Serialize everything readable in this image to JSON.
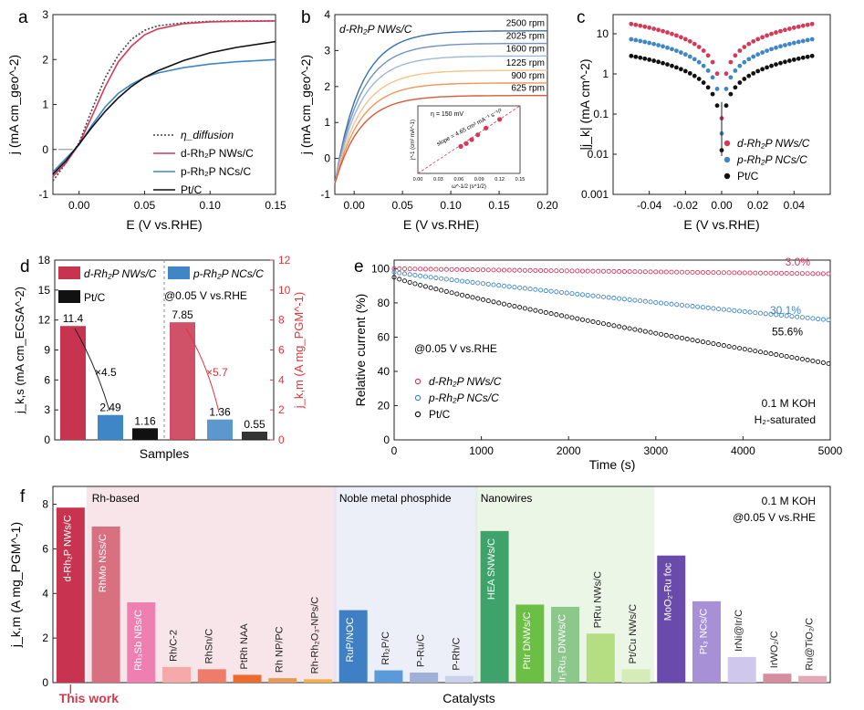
{
  "chart_data": [
    {
      "panel": "a",
      "type": "line",
      "xlabel": "E (V vs.RHE)",
      "ylabel": "j (mA cm_geo^-2)",
      "xlim": [
        -0.02,
        0.15
      ],
      "ylim": [
        -1,
        3
      ],
      "xticks": [
        "0.00",
        "0.05",
        "0.10",
        "0.15"
      ],
      "yticks": [
        "-1",
        "0",
        "1",
        "2",
        "3"
      ],
      "legend_position": "bottom-right",
      "series": [
        {
          "name": "η_diffusion",
          "style": "dotted",
          "color": "#444444",
          "x": [
            -0.02,
            -0.01,
            0,
            0.01,
            0.02,
            0.03,
            0.04,
            0.05,
            0.06,
            0.08,
            0.1,
            0.12,
            0.15
          ],
          "y": [
            -0.7,
            -0.3,
            0.15,
            0.9,
            1.6,
            2.1,
            2.45,
            2.65,
            2.75,
            2.82,
            2.85,
            2.86,
            2.86
          ]
        },
        {
          "name": "d-Rh₂P NWs/C",
          "style": "solid",
          "color": "#d4395a",
          "x": [
            -0.02,
            -0.01,
            0,
            0.01,
            0.02,
            0.03,
            0.04,
            0.05,
            0.06,
            0.08,
            0.1,
            0.12,
            0.15
          ],
          "y": [
            -0.6,
            -0.3,
            0.12,
            0.75,
            1.4,
            1.95,
            2.3,
            2.55,
            2.68,
            2.8,
            2.84,
            2.85,
            2.86
          ]
        },
        {
          "name": "p-Rh₂P NCs/C",
          "style": "solid",
          "color": "#3f86c6",
          "x": [
            -0.02,
            -0.01,
            0,
            0.01,
            0.02,
            0.03,
            0.04,
            0.05,
            0.06,
            0.08,
            0.1,
            0.12,
            0.15
          ],
          "y": [
            -0.5,
            -0.2,
            0.1,
            0.55,
            0.95,
            1.25,
            1.45,
            1.6,
            1.7,
            1.82,
            1.9,
            1.95,
            2.0
          ]
        },
        {
          "name": "Pt/C",
          "style": "solid",
          "color": "#111111",
          "x": [
            -0.02,
            -0.01,
            0,
            0.01,
            0.02,
            0.03,
            0.04,
            0.05,
            0.06,
            0.08,
            0.1,
            0.12,
            0.15
          ],
          "y": [
            -0.55,
            -0.25,
            0.12,
            0.5,
            0.85,
            1.15,
            1.4,
            1.6,
            1.75,
            1.98,
            2.15,
            2.27,
            2.4
          ]
        }
      ]
    },
    {
      "panel": "b",
      "type": "line",
      "title": "d-Rh₂P NWs/C",
      "xlabel": "E (V vs.RHE)",
      "ylabel": "j (mA cm_geo^-2)",
      "xlim": [
        -0.02,
        0.2
      ],
      "ylim": [
        -1,
        4
      ],
      "xticks": [
        "0.00",
        "0.05",
        "0.10",
        "0.15",
        "0.20"
      ],
      "yticks": [
        "-1",
        "0",
        "1",
        "2",
        "3",
        "4"
      ],
      "series": [
        {
          "name": "2500 rpm",
          "color": "#3b6ea8",
          "plateau": 3.55
        },
        {
          "name": "2025 rpm",
          "color": "#6f94c4",
          "plateau": 3.2
        },
        {
          "name": "1600 rpm",
          "color": "#9fb8d8",
          "plateau": 2.85
        },
        {
          "name": "1225 rpm",
          "color": "#f3c48c",
          "plateau": 2.45
        },
        {
          "name": "900 rpm",
          "color": "#f0965a",
          "plateau": 2.1
        },
        {
          "name": "625 rpm",
          "color": "#d85b3a",
          "plateau": 1.75
        }
      ],
      "inset": {
        "label": "η = 150 mV",
        "annotation": "slope = 4.65 cm² mA⁻¹ s⁻¹/²",
        "xlim": [
          0,
          0.15
        ],
        "xticks": [
          "0.00",
          "0.03",
          "0.06",
          "0.09",
          "0.12",
          "0.15"
        ],
        "xlabel": "ω^-1/2 (s^1/2)",
        "ylabel": "j^-1 (cm² mA^-1)",
        "x": [
          0.063,
          0.071,
          0.079,
          0.088,
          0.1,
          0.12
        ],
        "y": [
          0.28,
          0.31,
          0.35,
          0.4,
          0.47,
          0.56
        ]
      }
    },
    {
      "panel": "c",
      "type": "scatter",
      "xlabel": "E (V vs.RHE)",
      "ylabel": "|j_k| (mA cm^-2)",
      "xlim": [
        -0.06,
        0.06
      ],
      "ylim_log": [
        0.001,
        30
      ],
      "xticks": [
        "-0.04",
        "-0.02",
        "0.00",
        "0.02",
        "0.04"
      ],
      "yticks": [
        "0.001",
        "0.01",
        "0.1",
        "1",
        "10"
      ],
      "legend_position": "bottom-right",
      "series": [
        {
          "name": "d-Rh₂P NWs/C",
          "color": "#d4395a",
          "a": 17.5
        },
        {
          "name": "p-Rh₂P NCs/C",
          "color": "#3f86c6",
          "a": 7.3
        },
        {
          "name": "Pt/C",
          "color": "#111111",
          "a": 2.8
        }
      ]
    },
    {
      "panel": "d",
      "type": "bar",
      "xlabel": "Samples",
      "ylabel_left": "j_k,s (mA cm_ECSA^-2)",
      "ylabel_right": "j_k,m (A mg_PGM^-1)",
      "ylim_left": [
        0,
        18
      ],
      "ylim_right": [
        0,
        12
      ],
      "yticks_left": [
        "0",
        "3",
        "6",
        "9",
        "12",
        "15",
        "18"
      ],
      "yticks_right": [
        "0",
        "2",
        "4",
        "6",
        "8",
        "10",
        "12"
      ],
      "annotation": "@0.05 V vs.RHE",
      "ratio_left": "×4.5",
      "ratio_right": "×5.7",
      "legend": [
        "d-Rh₂P NWs/C",
        "p-Rh₂P NCs/C",
        "Pt/C"
      ],
      "specific": [
        {
          "name": "d-Rh₂P NWs/C",
          "value": 11.4,
          "label": "11.4",
          "color": "#c8344f"
        },
        {
          "name": "p-Rh₂P NCs/C",
          "value": 2.49,
          "label": "2.49",
          "color": "#3f86c6"
        },
        {
          "name": "Pt/C",
          "value": 1.16,
          "label": "1.16",
          "color": "#111111"
        }
      ],
      "mass": [
        {
          "name": "d-Rh₂P NWs/C",
          "value": 7.85,
          "label": "7.85",
          "color": "#c8344f"
        },
        {
          "name": "p-Rh₂P NCs/C",
          "value": 1.36,
          "label": "1.36",
          "color": "#3f86c6"
        },
        {
          "name": "Pt/C",
          "value": 0.55,
          "label": "0.55",
          "color": "#111111"
        }
      ]
    },
    {
      "panel": "e",
      "type": "scatter",
      "xlabel": "Time (s)",
      "ylabel": "Relative current (%)",
      "xlim": [
        0,
        5000
      ],
      "ylim": [
        0,
        105
      ],
      "xticks": [
        "0",
        "1000",
        "2000",
        "3000",
        "4000",
        "5000"
      ],
      "yticks": [
        "0",
        "20",
        "40",
        "60",
        "80",
        "100"
      ],
      "annotations": [
        "@0.05 V vs.RHE",
        "0.1 M KOH",
        "H₂-saturated"
      ],
      "series": [
        {
          "name": "d-Rh₂P NWs/C",
          "color": "#d4395a",
          "end": 97,
          "loss": "3.0%"
        },
        {
          "name": "p-Rh₂P NCs/C",
          "color": "#3f86c6",
          "end": 69.9,
          "loss": "30.1%"
        },
        {
          "name": "Pt/C",
          "color": "#111111",
          "end": 44.4,
          "loss": "55.6%"
        }
      ]
    },
    {
      "panel": "f",
      "type": "bar",
      "xlabel": "Catalysts",
      "ylabel": "j_k,m (A mg_PGM^-1)",
      "ylim": [
        0,
        8.8
      ],
      "yticks": [
        "0",
        "2",
        "4",
        "6",
        "8"
      ],
      "annotation": [
        "0.1 M KOH",
        "@0.05 V vs.RHE"
      ],
      "highlight": "This work",
      "groups": [
        {
          "name": "Rh-based",
          "color": "#f4d3dc"
        },
        {
          "name": "Noble metal phosphide",
          "color": "#dfe3f3"
        },
        {
          "name": "Nanowires",
          "color": "#dff0d5"
        }
      ],
      "categories": [
        "d-Rh₂P NWs/C",
        "RhMo NSs/C",
        "Rh₃Sb NBs/C",
        "Rh/C-2",
        "RhSn/C",
        "PtRh NAA",
        "Rh NP/PC",
        "Rh-Rh₂O₃-NPs/C",
        "RuP/NOC",
        "Rh₂P/C",
        "P-Ru/C",
        "P-Rh/C",
        "HEA SNWs/C",
        "PtIr DNWs/C",
        "Ir₁Ru₃ DNWs/C",
        "PtRu NWs/C",
        "Pt/Cu NWs/C",
        "MoO₂-Ru foc",
        "Pt₃ NCs/C",
        "IrNi@Ir/C",
        "IrWO₂/C",
        "Ru@TiO₂/C"
      ],
      "values": [
        7.85,
        7.0,
        3.6,
        0.7,
        0.6,
        0.35,
        0.2,
        0.15,
        3.25,
        0.55,
        0.45,
        0.3,
        6.8,
        3.5,
        3.4,
        2.2,
        0.6,
        5.7,
        3.65,
        1.15,
        0.4,
        0.3
      ],
      "colors": [
        "#c8344f",
        "#d9707f",
        "#ee7fb0",
        "#f6a9a9",
        "#ef7b6b",
        "#ec6b2d",
        "#e79a56",
        "#f0b14b",
        "#3f7fc4",
        "#5b9ad8",
        "#9fb0d8",
        "#c9d2ea",
        "#3ea36a",
        "#6cbf45",
        "#8cc88c",
        "#b5dd82",
        "#d5ecb8",
        "#6a4bab",
        "#a890d6",
        "#cfc7ec",
        "#d58e9e",
        "#e3a7b8"
      ]
    }
  ],
  "panel_letters": [
    "a",
    "b",
    "c",
    "d",
    "e",
    "f"
  ]
}
